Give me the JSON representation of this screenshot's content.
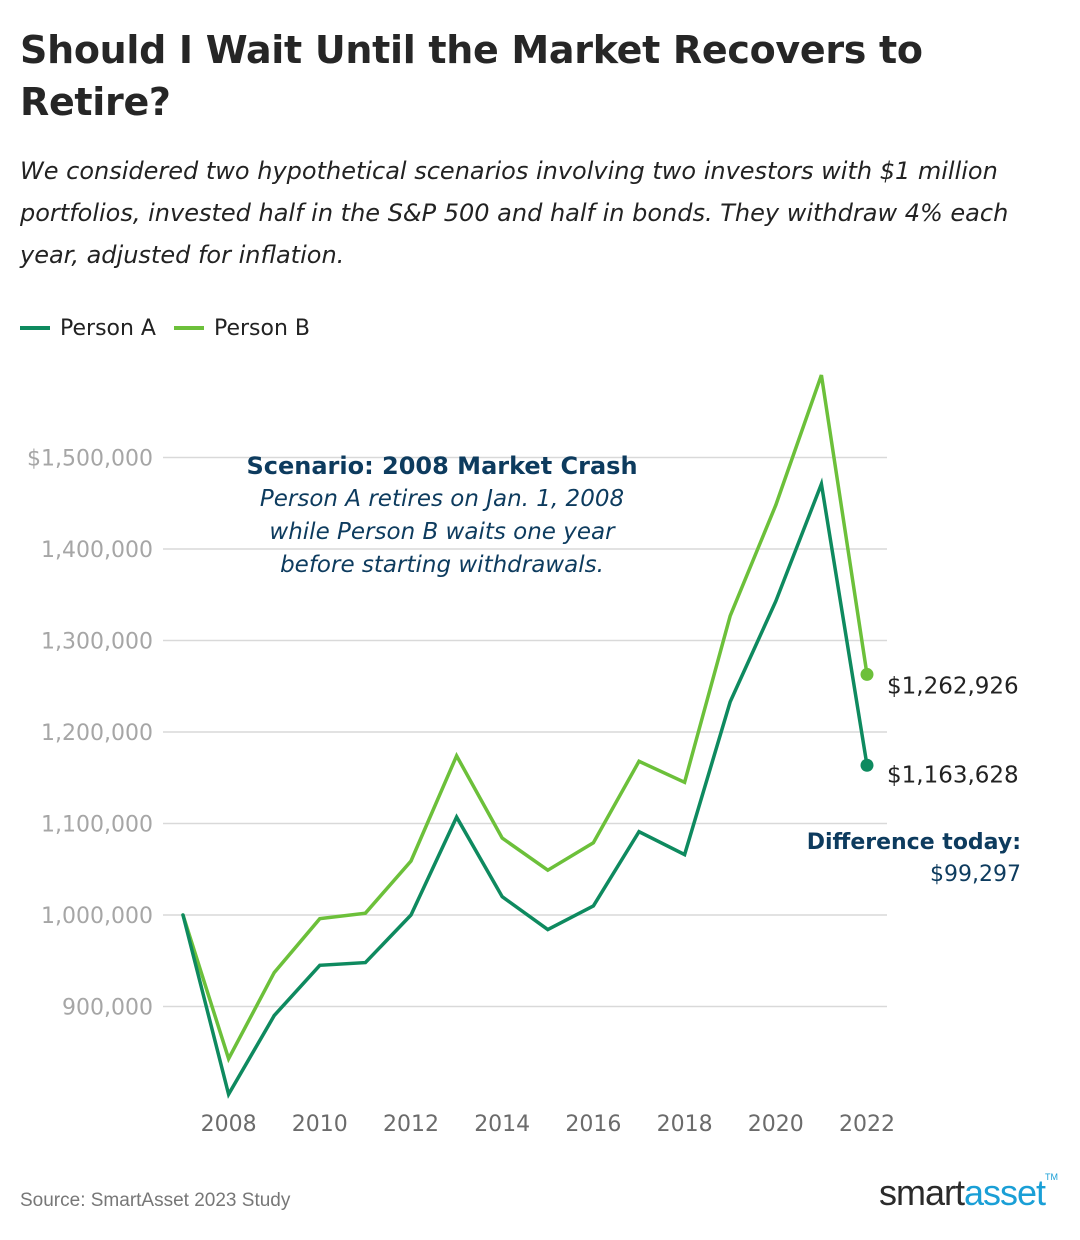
{
  "title": "Should I Wait Until the Market Recovers to Retire?",
  "subtitle": "We considered two hypothetical scenarios involving two investors with $1 million portfolios, invested half in the S&P 500 and half in bonds. They withdraw 4% each year, adjusted for inflation.",
  "source": "Source: SmartAsset 2023 Study",
  "logo": {
    "part1": "smart",
    "part2": "asset",
    "tm": "TM"
  },
  "colors": {
    "person_a": "#0e8a5f",
    "person_b": "#6cc03a",
    "annotation": "#0d3b5e",
    "grid": "#d9d9d9",
    "tick": "#a6a6a6"
  },
  "chart_data": {
    "type": "line",
    "x": [
      2007,
      2008,
      2009,
      2010,
      2011,
      2012,
      2013,
      2014,
      2015,
      2016,
      2017,
      2018,
      2019,
      2020,
      2021,
      2022
    ],
    "series": [
      {
        "name": "Person A",
        "values": [
          1000000,
          804000,
          890000,
          945000,
          948000,
          1000000,
          1107000,
          1020000,
          984000,
          1010000,
          1091000,
          1066000,
          1233000,
          1343000,
          1471000,
          1163628
        ]
      },
      {
        "name": "Person B",
        "values": [
          1000000,
          843000,
          937000,
          996000,
          1002000,
          1059000,
          1174000,
          1084000,
          1049000,
          1079000,
          1168000,
          1145000,
          1327000,
          1448000,
          1590000,
          1262926
        ]
      }
    ],
    "xlim": [
      2007,
      2022
    ],
    "ylim": [
      800000,
      1600000
    ],
    "x_ticks": [
      2008,
      2010,
      2012,
      2014,
      2016,
      2018,
      2020,
      2022
    ],
    "x_tick_labels": [
      "2008",
      "2010",
      "2012",
      "2014",
      "2016",
      "2018",
      "2020",
      "2022"
    ],
    "y_ticks": [
      900000,
      1000000,
      1100000,
      1200000,
      1300000,
      1400000,
      1500000
    ],
    "y_tick_labels": [
      "900,000",
      "1,000,000",
      "1,100,000",
      "1,200,000",
      "1,300,000",
      "1,400,000",
      "$1,500,000"
    ],
    "grid": "horizontal",
    "legend": "top-left",
    "end_labels": {
      "person_a": "$1,163,628",
      "person_b": "$1,262,926"
    },
    "annotations": {
      "scenario_title": "Scenario: 2008 Market Crash",
      "scenario_lines": [
        "Person A retires on Jan. 1, 2008",
        "while Person B waits one year",
        "before starting withdrawals."
      ],
      "difference_label": "Difference today:",
      "difference_value": "$99,297"
    }
  }
}
